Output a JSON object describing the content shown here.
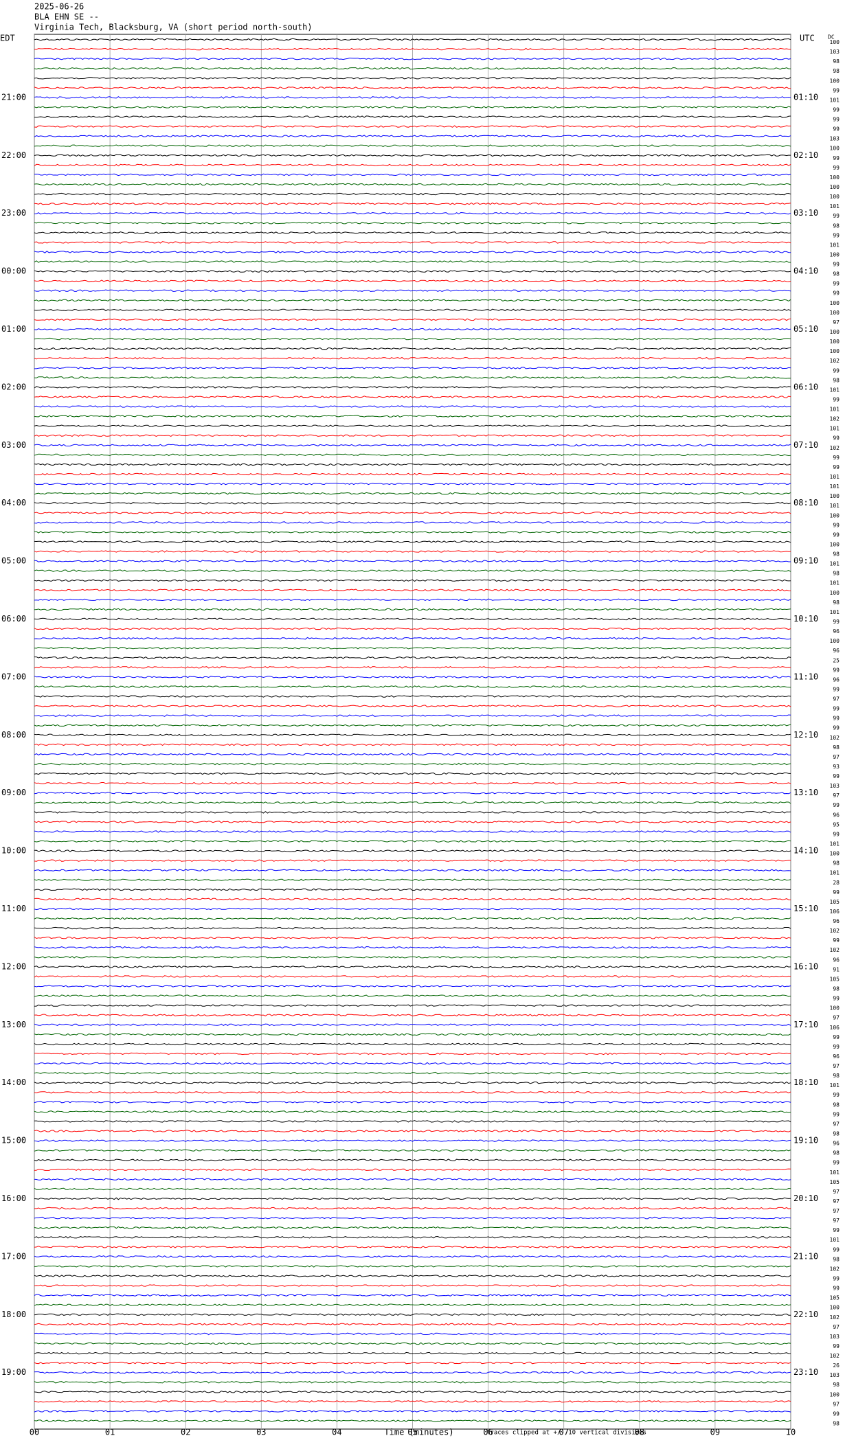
{
  "header": {
    "date": "2025-06-26",
    "station": "BLA EHN SE --",
    "location": "Virginia Tech, Blacksburg, VA (short period north-south)"
  },
  "left_axis": {
    "zone": "EDT",
    "labels": [
      "21:00",
      "22:00",
      "23:00",
      "00:00",
      "01:00",
      "02:00",
      "03:00",
      "04:00",
      "05:00",
      "06:00",
      "07:00",
      "08:00",
      "09:00",
      "10:00",
      "11:00",
      "12:00",
      "13:00",
      "14:00",
      "15:00",
      "16:00",
      "17:00",
      "18:00",
      "19:00"
    ]
  },
  "right_axis": {
    "zone": "UTC",
    "dc_label": "DC",
    "labels": [
      "01:10",
      "02:10",
      "03:10",
      "04:10",
      "05:10",
      "06:10",
      "07:10",
      "08:10",
      "09:10",
      "10:10",
      "11:10",
      "12:10",
      "13:10",
      "14:10",
      "15:10",
      "16:10",
      "17:10",
      "18:10",
      "19:10",
      "20:10",
      "21:10",
      "22:10",
      "23:10"
    ]
  },
  "dc_values": [
    100,
    103,
    98,
    98,
    100,
    99,
    101,
    99,
    99,
    99,
    103,
    100,
    99,
    99,
    100,
    100,
    100,
    101,
    99,
    98,
    99,
    101,
    100,
    99,
    98,
    99,
    99,
    100,
    100,
    97,
    100,
    100,
    100,
    102,
    99,
    98,
    101,
    99,
    101,
    102,
    101,
    99,
    102,
    99,
    99,
    101,
    101,
    100,
    101,
    100,
    99,
    99,
    100,
    98,
    101,
    98,
    101,
    100,
    98,
    101,
    99,
    96,
    100,
    96,
    25,
    99,
    96,
    99,
    97,
    99,
    99,
    99,
    102,
    98,
    97,
    93,
    99,
    103,
    97,
    99,
    96,
    95,
    99,
    101,
    100,
    98,
    101,
    28,
    99,
    105,
    106,
    96,
    102,
    99,
    102,
    96,
    91,
    105,
    98,
    99,
    100,
    97,
    106,
    99,
    99,
    96,
    97,
    98,
    101,
    99,
    98,
    99,
    97,
    98,
    96,
    98,
    99,
    101,
    105,
    97,
    97,
    97,
    97,
    99,
    101,
    99,
    98,
    102,
    99,
    99,
    105,
    100,
    102,
    97,
    103,
    99,
    102,
    26,
    103,
    98,
    100,
    97,
    99,
    98
  ],
  "x_axis": {
    "label": "Time (minutes)",
    "xlim": [
      0,
      10
    ],
    "ticks": [
      {
        "value": 0,
        "label": "00"
      },
      {
        "value": 1,
        "label": "01"
      },
      {
        "value": 2,
        "label": "02"
      },
      {
        "value": 3,
        "label": "03"
      },
      {
        "value": 4,
        "label": "04"
      },
      {
        "value": 5,
        "label": "05"
      },
      {
        "value": 6,
        "label": "06"
      },
      {
        "value": 7,
        "label": "07"
      },
      {
        "value": 8,
        "label": "08"
      },
      {
        "value": 9,
        "label": "09"
      },
      {
        "value": 10,
        "label": "10"
      }
    ]
  },
  "footnote": "Traces clipped at +/- 10 vertical divisions",
  "trace_colors": [
    "#000000",
    "#ff0000",
    "#0000ff",
    "#006400"
  ]
}
